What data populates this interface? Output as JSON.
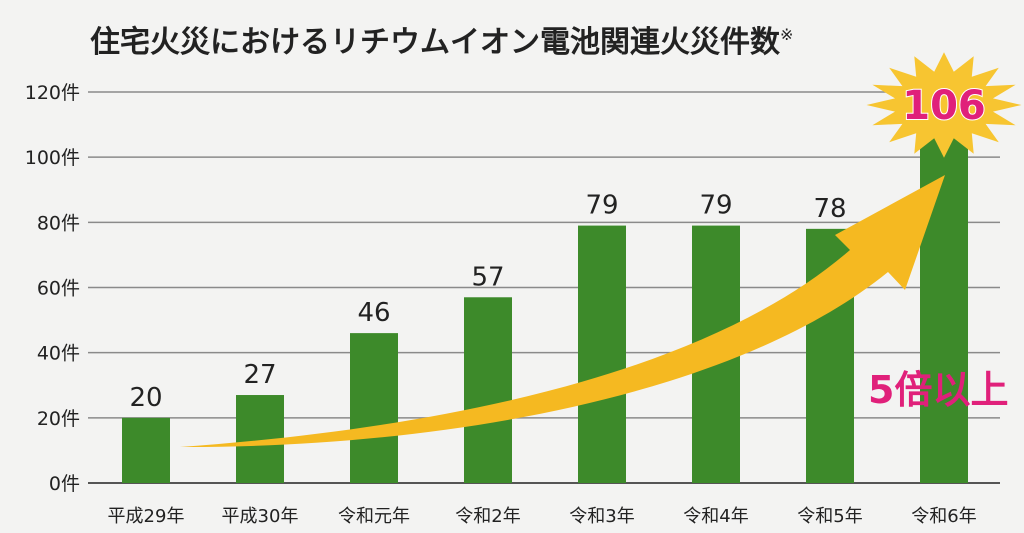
{
  "chart_data": {
    "type": "bar",
    "title": "住宅火災におけるリチウムイオン電池関連火災件数",
    "title_note_mark": "※",
    "categories": [
      "平成29年",
      "平成30年",
      "令和元年",
      "令和2年",
      "令和3年",
      "令和4年",
      "令和5年",
      "令和6年"
    ],
    "values": [
      20,
      27,
      46,
      57,
      79,
      79,
      78,
      106
    ],
    "value_labels": [
      "20",
      "27",
      "46",
      "57",
      "79",
      "79",
      "78",
      "106"
    ],
    "yticks": [
      0,
      20,
      40,
      60,
      80,
      100,
      120
    ],
    "ytick_labels": [
      "0件",
      "20件",
      "40件",
      "60件",
      "80件",
      "100件",
      "120件"
    ],
    "ylim": [
      0,
      120
    ],
    "xlabel": "",
    "ylabel": "",
    "grid": true,
    "annotation": "5倍以上",
    "colors": {
      "bar": "#3d8a2a",
      "arrow": "#f5b921",
      "highlight": "#e0207a",
      "star": "#f7c531"
    }
  }
}
